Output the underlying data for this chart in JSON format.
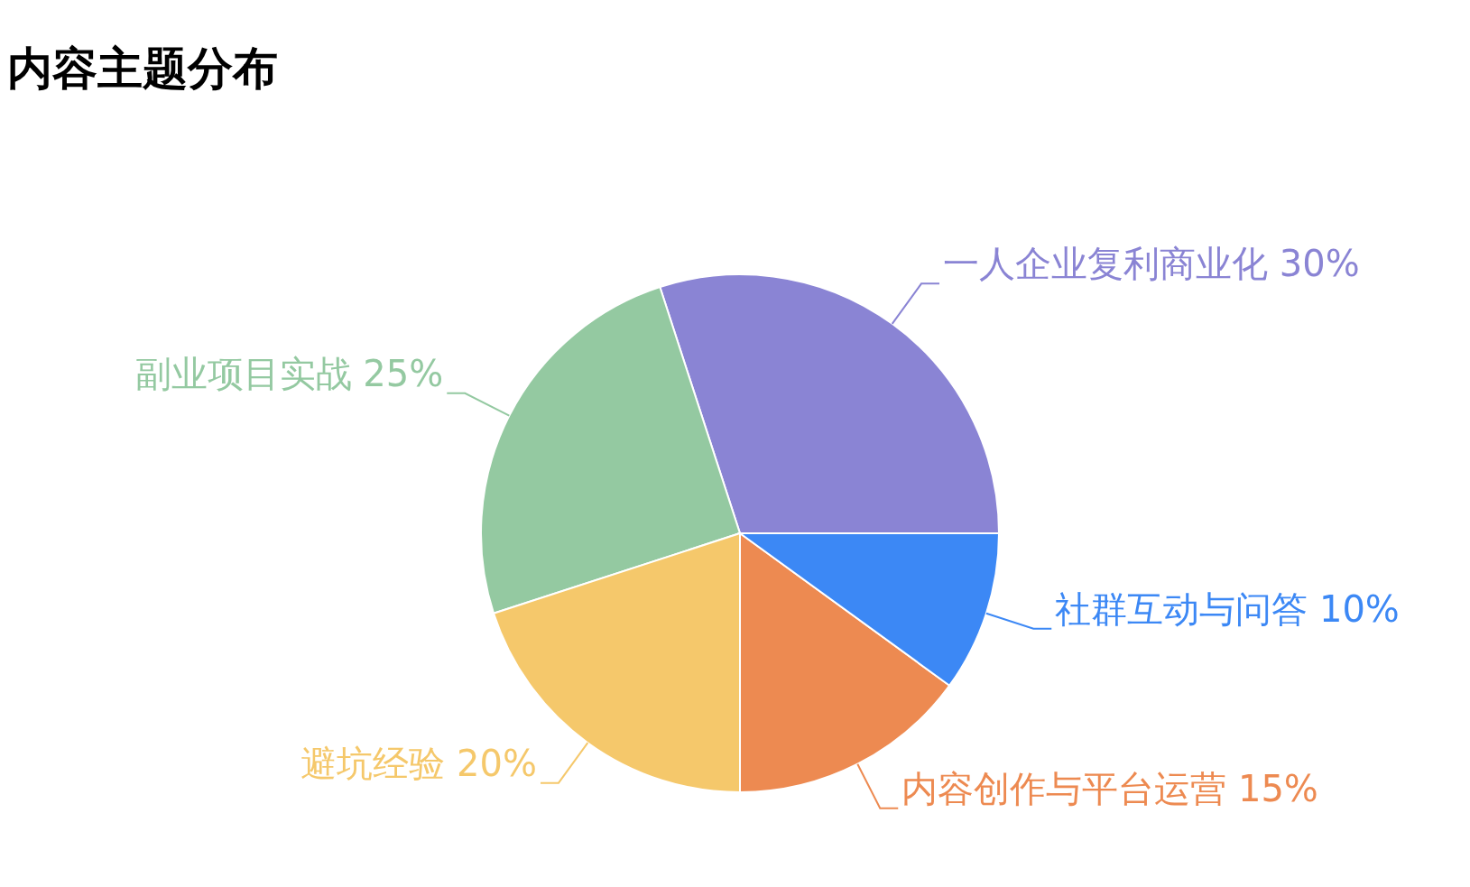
{
  "chart_data": {
    "type": "pie",
    "title": "内容主题分布",
    "categories": [
      "一人企业复利商业化",
      "副业项目实战",
      "避坑经验",
      "内容创作与平台运营",
      "社群互动与问答"
    ],
    "values": [
      30,
      25,
      20,
      15,
      10
    ],
    "value_labels": [
      "30%",
      "25%",
      "20%",
      "15%",
      "10%"
    ],
    "colors": [
      "#8a84d4",
      "#94c9a1",
      "#f5c86b",
      "#ed8a51",
      "#3c88f5"
    ]
  }
}
